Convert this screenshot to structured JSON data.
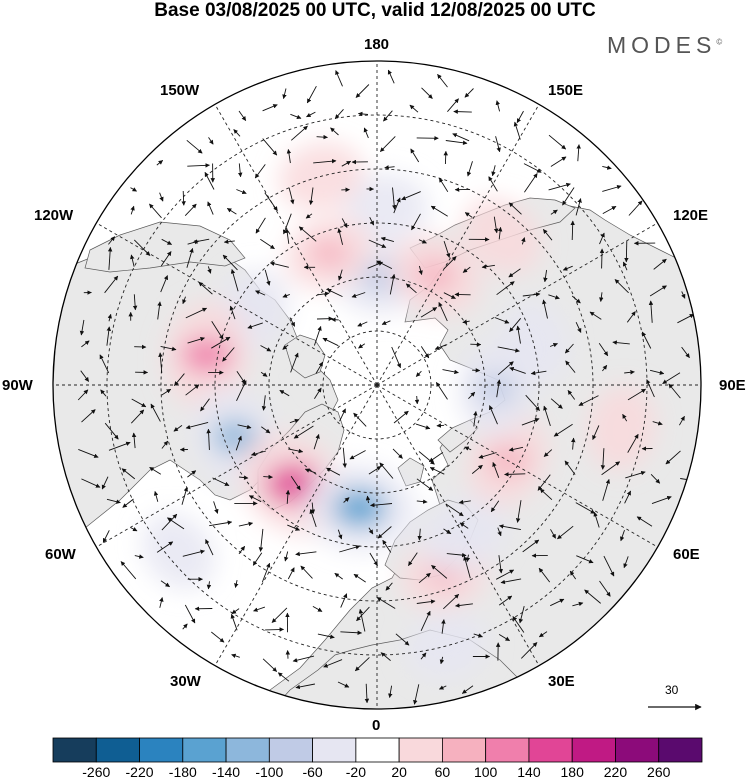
{
  "title": "Base 03/08/2025 00 UTC, valid 12/08/2025 00 UTC",
  "logo": {
    "text": "MODES",
    "mark": "©"
  },
  "map": {
    "projection": "north-polar-stereographic",
    "longitude_labels": {
      "top": "180",
      "bottom": "0",
      "left": "90W",
      "right": "90E",
      "upper_left_1": "150W",
      "upper_left_2": "120W",
      "upper_right_1": "150E",
      "upper_right_2": "120E",
      "lower_left_1": "60W",
      "lower_left_2": "30W",
      "lower_right_1": "60E",
      "lower_right_2": "30E"
    },
    "colors": {
      "land": "#e9e9e9",
      "coast": "#5a5a5a",
      "grid": "#222222"
    }
  },
  "reference_vector": {
    "label": "30"
  },
  "colorbar": {
    "ticks": [
      "-260",
      "-220",
      "-180",
      "-140",
      "-100",
      "-60",
      "-20",
      "20",
      "60",
      "100",
      "140",
      "180",
      "220",
      "260"
    ],
    "colors": [
      "#163d5c",
      "#0f5e93",
      "#2b83bf",
      "#5aa2d1",
      "#8db7dc",
      "#c0cbe6",
      "#e6e6f2",
      "#ffffff",
      "#f9d9dc",
      "#f6b1bf",
      "#f07fac",
      "#e14596",
      "#c01a84",
      "#8c0b7a",
      "#5a0a6e"
    ]
  },
  "anomaly_centers": [
    {
      "id": "neg-1",
      "lon": 178,
      "colat": 20,
      "value": -80
    },
    {
      "id": "neg-2",
      "lon": 177,
      "colat": 33,
      "value": -40
    },
    {
      "id": "pos-1",
      "lon": 152,
      "colat": 23,
      "value": 80
    },
    {
      "id": "pos-2",
      "lon": 140,
      "colat": 36,
      "value": 40
    },
    {
      "id": "pos-3",
      "lon": -160,
      "colat": 26,
      "value": 60
    },
    {
      "id": "pos-4",
      "lon": -165,
      "colat": 40,
      "value": 40
    },
    {
      "id": "neg-3",
      "lon": -120,
      "colat": 27,
      "value": -60
    },
    {
      "id": "pos-5",
      "lon": -100,
      "colat": 32,
      "value": 130
    },
    {
      "id": "neg-4",
      "lon": -70,
      "colat": 28,
      "value": -110
    },
    {
      "id": "pos-6",
      "lon": -40,
      "colat": 24,
      "value": 170
    },
    {
      "id": "neg-5",
      "lon": -8,
      "colat": 23,
      "value": -150
    },
    {
      "id": "pos-7",
      "lon": 20,
      "colat": 37,
      "value": 60
    },
    {
      "id": "neg-6",
      "lon": 30,
      "colat": 32,
      "value": -60
    },
    {
      "id": "pos-8",
      "lon": 60,
      "colat": 28,
      "value": 80
    },
    {
      "id": "neg-7",
      "lon": 88,
      "colat": 22,
      "value": -80
    },
    {
      "id": "neg-8",
      "lon": 105,
      "colat": 30,
      "value": -40
    },
    {
      "id": "pos-9",
      "lon": 80,
      "colat": 46,
      "value": 40
    },
    {
      "id": "neg-9",
      "lon": -50,
      "colat": 48,
      "value": -30
    },
    {
      "id": "neg-10",
      "lon": 15,
      "colat": 50,
      "value": -30
    }
  ]
}
